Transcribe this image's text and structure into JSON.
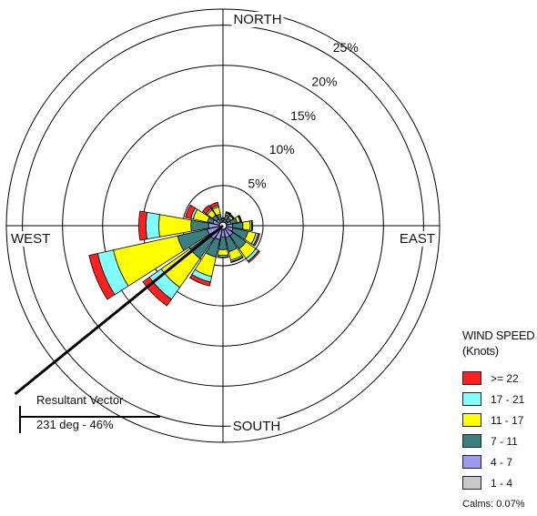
{
  "chart_data": {
    "type": "wind-rose",
    "directions": [
      "N",
      "NNE",
      "NE",
      "ENE",
      "E",
      "ESE",
      "SE",
      "SSE",
      "S",
      "SSW",
      "SW",
      "WSW",
      "W",
      "WNW",
      "NW",
      "NNW"
    ],
    "direction_labels": {
      "north": "NORTH",
      "east": "EAST",
      "south": "SOUTH",
      "west": "WEST"
    },
    "rings": [
      {
        "value": 5,
        "label": "5%"
      },
      {
        "value": 10,
        "label": "10%"
      },
      {
        "value": 15,
        "label": "15%"
      },
      {
        "value": 20,
        "label": "20%"
      },
      {
        "value": 25,
        "label": "25%"
      }
    ],
    "rmax": 27,
    "bins": [
      "1 - 4",
      "4 - 7",
      "7 - 11",
      "11 - 17",
      "17 - 21",
      ">= 22"
    ],
    "colors": [
      "#c8c8c8",
      "#9a9af2",
      "#3a8080",
      "#ffff00",
      "#80ffff",
      "#ff2020"
    ],
    "cumulative_percent": [
      [
        0.2,
        0.6,
        0.9,
        1.0,
        1.0,
        1.0
      ],
      [
        0.2,
        0.8,
        1.4,
        1.6,
        1.7,
        1.8
      ],
      [
        0.2,
        0.7,
        1.2,
        1.5,
        1.6,
        1.7
      ],
      [
        0.2,
        1.0,
        1.8,
        2.2,
        2.3,
        2.4
      ],
      [
        0.2,
        1.2,
        2.5,
        3.4,
        3.6,
        3.7
      ],
      [
        0.2,
        1.3,
        3.2,
        4.2,
        4.5,
        4.7
      ],
      [
        0.2,
        1.5,
        3.5,
        5.0,
        5.4,
        5.6
      ],
      [
        0.2,
        1.5,
        3.3,
        4.4,
        4.6,
        4.7
      ],
      [
        0.2,
        1.4,
        3.0,
        3.7,
        3.9,
        4.0
      ],
      [
        0.2,
        1.8,
        4.0,
        6.5,
        7.2,
        7.7
      ],
      [
        0.2,
        2.0,
        5.0,
        9.4,
        11.2,
        12.2
      ],
      [
        0.2,
        2.0,
        5.8,
        14.0,
        16.0,
        17.1
      ],
      [
        0.2,
        1.8,
        4.0,
        8.0,
        9.6,
        10.5
      ],
      [
        0.2,
        1.3,
        2.0,
        3.8,
        4.1,
        4.8
      ],
      [
        0.2,
        1.0,
        1.6,
        2.4,
        2.6,
        3.1
      ],
      [
        0.2,
        0.8,
        1.5,
        2.4,
        2.6,
        3.0
      ]
    ],
    "resultant_vector": {
      "direction_deg": 231,
      "percent": 46
    }
  },
  "legend": {
    "title_line1": "WIND SPEED",
    "title_line2": "(Knots)",
    "items": [
      {
        "label": ">= 22",
        "color": "#ff2020"
      },
      {
        "label": "17 - 21",
        "color": "#80ffff"
      },
      {
        "label": "11 - 17",
        "color": "#ffff00"
      },
      {
        "label": "7 - 11",
        "color": "#3a8080"
      },
      {
        "label": "4 - 7",
        "color": "#9a9af2"
      },
      {
        "label": "1 - 4",
        "color": "#c8c8c8"
      }
    ],
    "calms": "Calms: 0.07%"
  },
  "resultant": {
    "label": "Resultant Vector",
    "value": "231 deg - 46%"
  }
}
